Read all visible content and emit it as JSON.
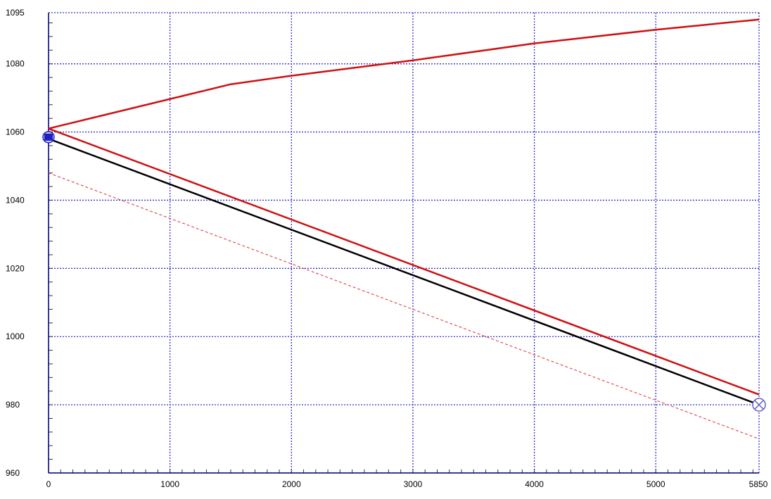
{
  "chart_data": {
    "type": "line",
    "title": "",
    "xlabel": "",
    "ylabel": "",
    "xlim": [
      0,
      5850
    ],
    "ylim": [
      960,
      1095
    ],
    "x_ticks": [
      0,
      1000,
      2000,
      3000,
      4000,
      5000,
      5850
    ],
    "x_tick_labels": [
      "0",
      "1000",
      "2000",
      "3000",
      "4000",
      "5000",
      "5850"
    ],
    "y_ticks": [
      960,
      980,
      1000,
      1020,
      1040,
      1060,
      1080,
      1095
    ],
    "y_tick_labels": [
      "960",
      "980",
      "1000",
      "1020",
      "1040",
      "1060",
      "1080",
      "1095"
    ],
    "grid": true,
    "series": [
      {
        "x": [
          0,
          1500,
          2000,
          3000,
          4000,
          5000,
          5850
        ],
        "y": [
          1061,
          1074,
          1076.5,
          1081,
          1086,
          1090,
          1093
        ],
        "color": "#d01010",
        "style": "solid",
        "width": 2.5
      },
      {
        "x": [
          0,
          5850
        ],
        "y": [
          1061,
          983
        ],
        "color": "#d01010",
        "style": "solid",
        "width": 2.5
      },
      {
        "x": [
          0,
          5850
        ],
        "y": [
          1058,
          980
        ],
        "color": "#000000",
        "style": "solid",
        "width": 2.5
      },
      {
        "x": [
          0,
          5850
        ],
        "y": [
          1048,
          970
        ],
        "color": "#e05050",
        "style": "dashed",
        "width": 1.2
      }
    ],
    "markers": [
      {
        "x": 0,
        "y": 1058.5,
        "shape": "square-in-circle",
        "color": "#2020c0"
      },
      {
        "x": 5850,
        "y": 980,
        "shape": "circle-x",
        "color": "#6060c0"
      }
    ],
    "colors": {
      "grid": "#3333cc",
      "axis": "#000080"
    }
  }
}
